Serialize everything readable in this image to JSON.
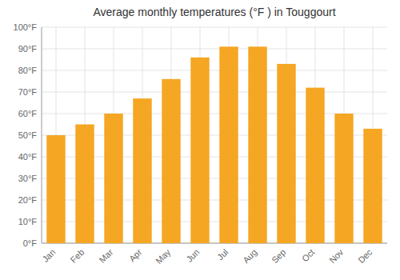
{
  "chart_data": {
    "type": "bar",
    "title": "Average monthly temperatures (°F ) in Touggourt",
    "categories": [
      "Jan",
      "Feb",
      "Mar",
      "Apr",
      "May",
      "Jun",
      "Jul",
      "Aug",
      "Sep",
      "Oct",
      "Nov",
      "Dec"
    ],
    "values": [
      50,
      55,
      60,
      67,
      76,
      86,
      91,
      91,
      83,
      72,
      60,
      53
    ],
    "color": "#F5A623",
    "ylim": [
      0,
      100
    ],
    "yticks": [
      {
        "value": 0,
        "label": "0°F"
      },
      {
        "value": 10,
        "label": "10°F"
      },
      {
        "value": 20,
        "label": "20°F"
      },
      {
        "value": 30,
        "label": "30°F"
      },
      {
        "value": 40,
        "label": "40°F"
      },
      {
        "value": 50,
        "label": "50°F"
      },
      {
        "value": 60,
        "label": "60°F"
      },
      {
        "value": 70,
        "label": "70°F"
      },
      {
        "value": 80,
        "label": "80°F"
      },
      {
        "value": 90,
        "label": "90°F"
      },
      {
        "value": 100,
        "label": "100°F"
      }
    ],
    "grid": true
  }
}
